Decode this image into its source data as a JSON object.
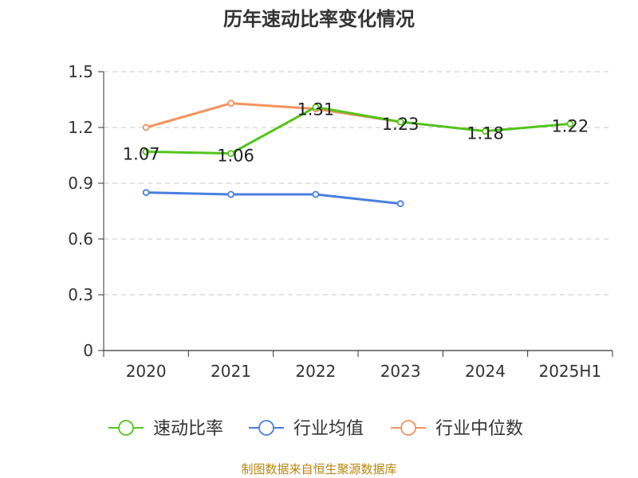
{
  "chart_data": {
    "type": "line",
    "title": "历年速动比率变化情况",
    "categories": [
      "2020",
      "2021",
      "2022",
      "2023",
      "2024",
      "2025H1"
    ],
    "ylim": [
      0,
      1.5
    ],
    "yticks": [
      "0",
      "0.3",
      "0.6",
      "0.9",
      "1.2",
      "1.5"
    ],
    "grid": true,
    "legend_position": "bottom",
    "series": [
      {
        "name": "速动比率",
        "color": "#52c41a",
        "values": [
          1.07,
          1.06,
          1.31,
          1.23,
          1.18,
          1.22
        ],
        "labels": [
          "1.07",
          "1.06",
          "1.31",
          "1.23",
          "1.18",
          "1.22"
        ]
      },
      {
        "name": "行业均值",
        "color": "#4a7fe0",
        "values": [
          0.85,
          0.84,
          0.84,
          0.79,
          null,
          null
        ]
      },
      {
        "name": "行业中位数",
        "color": "#f5925e",
        "values": [
          1.2,
          1.33,
          1.3,
          1.23,
          null,
          null
        ]
      }
    ]
  },
  "source": "制图数据来自恒生聚源数据库"
}
